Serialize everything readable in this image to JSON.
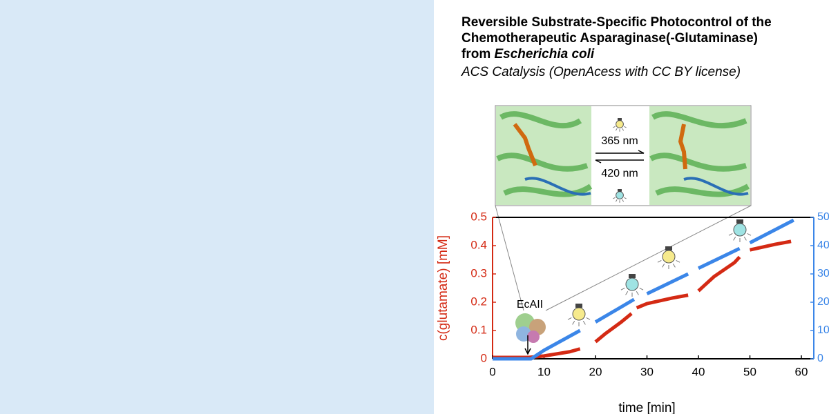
{
  "header": {
    "title_lines": [
      "Reversible Substrate-Specific Photocontrol of the",
      "Chemotherapeutic Asparaginase(-Glutaminase)",
      "from ",
      "Escherichia coli"
    ],
    "journal": "ACS Catalysis (OpenAcess with CC BY license)"
  },
  "chart_data": {
    "type": "line",
    "xlabel": "time [min]",
    "ylabel": "c(glutamate) [mM]",
    "annotations": [
      "EcAII",
      "365 nm",
      "420 nm"
    ],
    "xlim": [
      0,
      60
    ],
    "xticks": [
      0,
      10,
      20,
      30,
      40,
      50,
      60
    ],
    "ylim": [
      0,
      0.5
    ],
    "yticks": [
      0,
      0.1,
      0.2,
      0.3,
      0.4,
      0.5
    ],
    "y2lim": [
      0,
      50
    ],
    "y2ticks": [
      0,
      10,
      20,
      30,
      40,
      50
    ],
    "series": [
      {
        "color": "#d42a14",
        "x": [
          0,
          7,
          10,
          15,
          17,
          17.5,
          20,
          22,
          25,
          27,
          27.5,
          28,
          30,
          35,
          38,
          38.5,
          40,
          43,
          47,
          48,
          48.5,
          50,
          55,
          58
        ],
        "values": [
          0.005,
          0.005,
          0.01,
          0.025,
          0.035,
          null,
          0.06,
          0.09,
          0.13,
          0.16,
          null,
          0.18,
          0.195,
          0.215,
          0.225,
          null,
          0.24,
          0.29,
          0.34,
          0.36,
          null,
          0.385,
          0.405,
          0.415
        ]
      },
      {
        "color": "#3b86e8",
        "axis": "y2",
        "x": [
          0,
          7.5,
          10,
          17,
          17.5,
          20,
          27.5,
          28,
          30,
          38,
          38.5,
          40,
          48,
          48.5,
          50,
          58.5
        ],
        "values": [
          0,
          0,
          3,
          10,
          null,
          13,
          21,
          null,
          23,
          30,
          null,
          32,
          39,
          null,
          41,
          49
        ]
      }
    ]
  }
}
